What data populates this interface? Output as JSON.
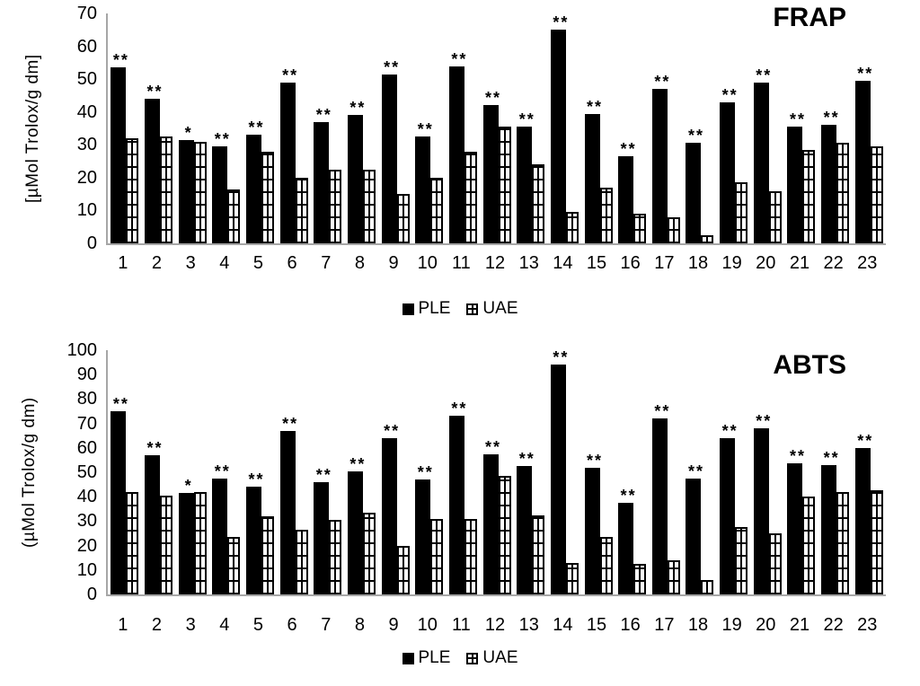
{
  "colors": {
    "ple_fill": "#000000",
    "uae_fill": "#ffffff",
    "pattern_line": "#000000",
    "axis_line": "#a6a6a6",
    "text": "#000000"
  },
  "chart_data": [
    {
      "type": "bar",
      "title": "FRAP",
      "ylabel": "[µMol Trolox/g dm]",
      "ylim": [
        0,
        70
      ],
      "ytick_step": 10,
      "grid": false,
      "legend_position": "bottom",
      "categories": [
        "1",
        "2",
        "3",
        "4",
        "5",
        "6",
        "7",
        "8",
        "9",
        "10",
        "11",
        "12",
        "13",
        "14",
        "15",
        "16",
        "17",
        "18",
        "19",
        "20",
        "21",
        "22",
        "23"
      ],
      "series": [
        {
          "name": "PLE",
          "values": [
            53.5,
            44,
            31.5,
            29.5,
            33,
            49,
            37,
            39,
            51.5,
            32.5,
            54,
            42,
            35.5,
            65,
            39.5,
            26.5,
            47,
            30.5,
            43,
            49,
            35.5,
            36,
            49.5
          ]
        },
        {
          "name": "UAE",
          "values": [
            32,
            32.5,
            31,
            16.5,
            28,
            20,
            22.5,
            22.5,
            15,
            20,
            28,
            35.5,
            24,
            9.5,
            17,
            9,
            8,
            2.5,
            18.5,
            16,
            28.5,
            30.5,
            29.5
          ]
        }
      ],
      "significance_markers": [
        "**",
        "**",
        "*",
        "**",
        "**",
        "**",
        "**",
        "**",
        "**",
        "**",
        "**",
        "**",
        "**",
        "**",
        "**",
        "**",
        "**",
        "**",
        "**",
        "**",
        "**",
        "**",
        "**"
      ]
    },
    {
      "type": "bar",
      "title": "ABTS",
      "ylabel": "(µMol Trolox/g dm)",
      "ylim": [
        0,
        100
      ],
      "ytick_step": 10,
      "grid": false,
      "legend_position": "bottom",
      "categories": [
        "1",
        "2",
        "3",
        "4",
        "5",
        "6",
        "7",
        "8",
        "9",
        "10",
        "11",
        "12",
        "13",
        "14",
        "15",
        "16",
        "17",
        "18",
        "19",
        "20",
        "21",
        "22",
        "23"
      ],
      "series": [
        {
          "name": "PLE",
          "values": [
            75,
            57,
            41.5,
            47.5,
            44,
            67,
            46,
            50.5,
            64,
            47,
            73,
            57.5,
            52.5,
            94,
            52,
            37.5,
            72,
            47.5,
            64,
            68,
            53.5,
            53,
            60
          ]
        },
        {
          "name": "UAE",
          "values": [
            42,
            40.5,
            42,
            23.5,
            32,
            26.5,
            30.5,
            33.5,
            20,
            31,
            31,
            48.5,
            32.5,
            13,
            23.5,
            12.5,
            14,
            6,
            27.5,
            25,
            40,
            42,
            42.5
          ]
        }
      ],
      "significance_markers": [
        "**",
        "**",
        "*",
        "**",
        "**",
        "**",
        "**",
        "**",
        "**",
        "**",
        "**",
        "**",
        "**",
        "**",
        "**",
        "**",
        "**",
        "**",
        "**",
        "**",
        "**",
        "**",
        "**"
      ]
    }
  ]
}
